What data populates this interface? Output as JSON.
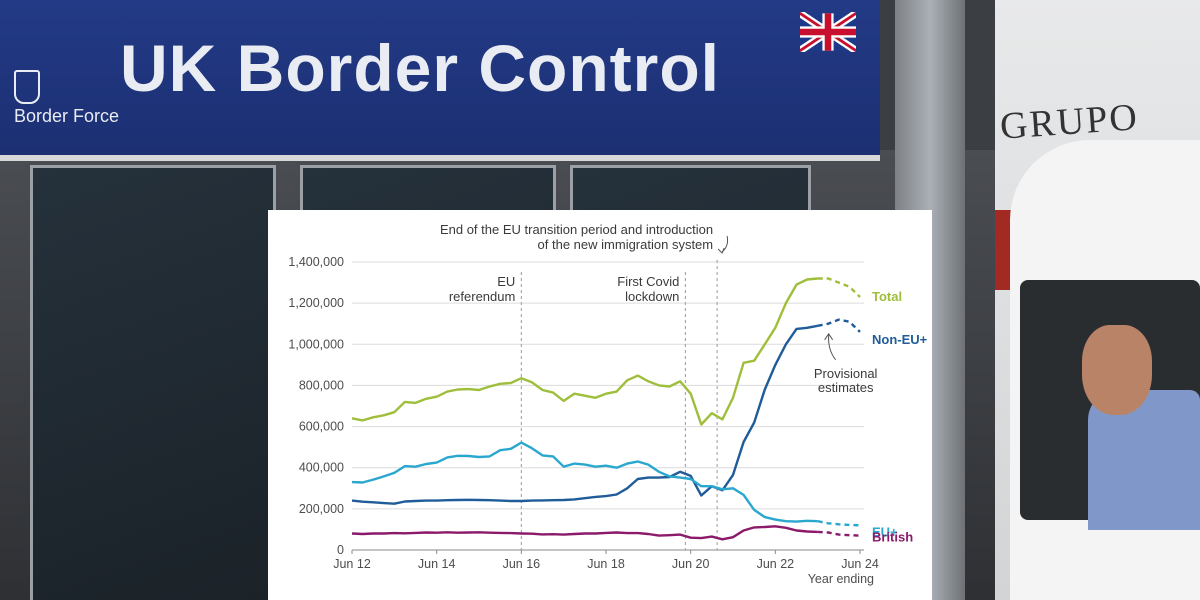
{
  "scene": {
    "sign_title": "UK Border Control",
    "sign_subtitle": "Border Force",
    "truck_text": "GRUPO"
  },
  "chart_data": {
    "type": "line",
    "x": [
      "Jun 12",
      "Sep 12",
      "Dec 12",
      "Mar 13",
      "Jun 13",
      "Sep 13",
      "Dec 13",
      "Mar 14",
      "Jun 14",
      "Sep 14",
      "Dec 14",
      "Mar 15",
      "Jun 15",
      "Sep 15",
      "Dec 15",
      "Mar 16",
      "Jun 16",
      "Sep 16",
      "Dec 16",
      "Mar 17",
      "Jun 17",
      "Sep 17",
      "Dec 17",
      "Mar 18",
      "Jun 18",
      "Sep 18",
      "Dec 18",
      "Mar 19",
      "Jun 19",
      "Sep 19",
      "Dec 19",
      "Mar 20",
      "Jun 20",
      "Sep 20",
      "Dec 20",
      "Mar 21",
      "Jun 21",
      "Sep 21",
      "Dec 21",
      "Mar 22",
      "Jun 22",
      "Sep 22",
      "Dec 22",
      "Mar 23",
      "Jun 23",
      "Sep 23",
      "Dec 23",
      "Mar 24",
      "Jun 24"
    ],
    "x_ticks": [
      "Jun 12",
      "Jun 14",
      "Jun 16",
      "Jun 18",
      "Jun 20",
      "Jun 22",
      "Jun 24"
    ],
    "x_caption": "Year ending",
    "y_ticks": [
      "0",
      "200,000",
      "400,000",
      "600,000",
      "800,000",
      "1,000,000",
      "1,200,000",
      "1,400,000"
    ],
    "ylim": [
      0,
      1400000
    ],
    "series": [
      {
        "name": "Total",
        "color": "#9fbe3b",
        "provisional_from": 44,
        "values": [
          640000,
          630000,
          645000,
          655000,
          670000,
          720000,
          715000,
          735000,
          745000,
          770000,
          780000,
          782000,
          778000,
          795000,
          808000,
          812000,
          835000,
          815000,
          778000,
          765000,
          725000,
          760000,
          750000,
          740000,
          760000,
          770000,
          825000,
          848000,
          820000,
          800000,
          795000,
          820000,
          760000,
          610000,
          665000,
          635000,
          740000,
          910000,
          920000,
          1000000,
          1080000,
          1200000,
          1290000,
          1315000,
          1320000,
          1320000,
          1300000,
          1280000,
          1230000
        ]
      },
      {
        "name": "Non-EU+",
        "color": "#1f5c99",
        "provisional_from": 44,
        "values": [
          240000,
          235000,
          232000,
          228000,
          225000,
          236000,
          238000,
          240000,
          240000,
          242000,
          243000,
          244000,
          243000,
          242000,
          240000,
          238000,
          238000,
          240000,
          241000,
          242000,
          243000,
          246000,
          252000,
          258000,
          262000,
          270000,
          300000,
          345000,
          352000,
          352000,
          355000,
          380000,
          360000,
          265000,
          310000,
          290000,
          365000,
          525000,
          620000,
          780000,
          900000,
          1000000,
          1075000,
          1080000,
          1090000,
          1100000,
          1120000,
          1110000,
          1060000
        ]
      },
      {
        "name": "EU+",
        "color": "#2aa7cf",
        "provisional_from": 44,
        "values": [
          330000,
          328000,
          342000,
          358000,
          375000,
          408000,
          405000,
          418000,
          425000,
          450000,
          458000,
          457000,
          452000,
          455000,
          485000,
          492000,
          522000,
          495000,
          460000,
          455000,
          405000,
          420000,
          415000,
          405000,
          410000,
          400000,
          420000,
          430000,
          415000,
          380000,
          358000,
          352000,
          345000,
          310000,
          310000,
          295000,
          300000,
          268000,
          195000,
          160000,
          148000,
          140000,
          138000,
          142000,
          140000,
          130000,
          125000,
          122000,
          120000
        ]
      },
      {
        "name": "British",
        "color": "#8b1a6b",
        "provisional_from": 44,
        "values": [
          80000,
          78000,
          80000,
          80000,
          82000,
          81000,
          83000,
          85000,
          84000,
          86000,
          84000,
          85000,
          86000,
          84000,
          83000,
          82000,
          80000,
          79000,
          76000,
          77000,
          75000,
          78000,
          80000,
          80000,
          83000,
          85000,
          82000,
          82000,
          78000,
          70000,
          72000,
          75000,
          60000,
          58000,
          65000,
          52000,
          62000,
          95000,
          110000,
          112000,
          115000,
          108000,
          95000,
          90000,
          88000,
          85000,
          75000,
          72000,
          70000
        ]
      }
    ],
    "annotations": [
      {
        "at": 16,
        "lines": [
          "EU",
          "referendum"
        ]
      },
      {
        "at": 31.5,
        "lines": [
          "First Covid",
          "lockdown"
        ]
      },
      {
        "at": 34.5,
        "lines": [
          "End of the EU transition period and introduction",
          "of the new immigration system"
        ]
      }
    ],
    "provisional_note": [
      "Provisional",
      "estimates"
    ],
    "grid": true
  }
}
